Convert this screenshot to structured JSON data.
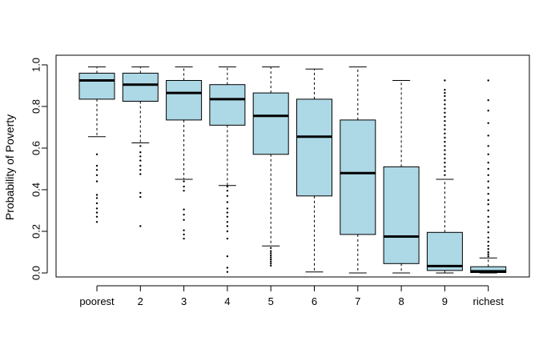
{
  "chart_data": {
    "type": "boxplot",
    "title": "",
    "xlabel": "",
    "ylabel": "Probability of Poverty",
    "ylim": [
      0.0,
      1.0
    ],
    "yticks": [
      "0.0",
      "0.2",
      "0.4",
      "0.6",
      "0.8",
      "1.0"
    ],
    "categories": [
      "poorest",
      "2",
      "3",
      "4",
      "5",
      "6",
      "7",
      "8",
      "9",
      "richest"
    ],
    "box_color": "#add8e6",
    "grid": false,
    "boxes": [
      {
        "q1": 0.835,
        "median": 0.925,
        "q3": 0.96,
        "whisker_low": 0.655,
        "whisker_high": 0.99,
        "outliers": [
          0.245,
          0.27,
          0.29,
          0.31,
          0.335,
          0.36,
          0.375,
          0.44,
          0.47,
          0.495,
          0.515,
          0.57
        ]
      },
      {
        "q1": 0.825,
        "median": 0.905,
        "q3": 0.96,
        "whisker_low": 0.625,
        "whisker_high": 0.99,
        "outliers": [
          0.225,
          0.365,
          0.385,
          0.475,
          0.495,
          0.515,
          0.54,
          0.56,
          0.58,
          0.61
        ]
      },
      {
        "q1": 0.735,
        "median": 0.865,
        "q3": 0.925,
        "whisker_low": 0.45,
        "whisker_high": 0.99,
        "outliers": [
          0.165,
          0.185,
          0.205,
          0.255,
          0.28,
          0.305,
          0.395,
          0.415,
          0.44
        ]
      },
      {
        "q1": 0.71,
        "median": 0.835,
        "q3": 0.905,
        "whisker_low": 0.42,
        "whisker_high": 0.99,
        "outliers": [
          0.005,
          0.025,
          0.08,
          0.165,
          0.2,
          0.225,
          0.245,
          0.27,
          0.29,
          0.31,
          0.34,
          0.37,
          0.395,
          0.415
        ]
      },
      {
        "q1": 0.57,
        "median": 0.755,
        "q3": 0.865,
        "whisker_low": 0.13,
        "whisker_high": 0.99,
        "outliers": [
          0.035,
          0.045,
          0.055,
          0.065,
          0.075,
          0.085,
          0.095,
          0.105,
          0.12
        ]
      },
      {
        "q1": 0.37,
        "median": 0.655,
        "q3": 0.835,
        "whisker_low": 0.005,
        "whisker_high": 0.98,
        "outliers": []
      },
      {
        "q1": 0.185,
        "median": 0.48,
        "q3": 0.735,
        "whisker_low": 0.0,
        "whisker_high": 0.99,
        "outliers": []
      },
      {
        "q1": 0.045,
        "median": 0.175,
        "q3": 0.51,
        "whisker_low": 0.0,
        "whisker_high": 0.925,
        "outliers": []
      },
      {
        "q1": 0.012,
        "median": 0.033,
        "q3": 0.195,
        "whisker_low": 0.0,
        "whisker_high": 0.45,
        "outliers": [
          0.47,
          0.49,
          0.51,
          0.53,
          0.55,
          0.57,
          0.59,
          0.61,
          0.63,
          0.65,
          0.67,
          0.69,
          0.71,
          0.73,
          0.75,
          0.77,
          0.79,
          0.81,
          0.83,
          0.85,
          0.865,
          0.88,
          0.925
        ]
      },
      {
        "q1": 0.002,
        "median": 0.008,
        "q3": 0.03,
        "whisker_low": 0.0,
        "whisker_high": 0.072,
        "outliers": [
          0.08,
          0.09,
          0.1,
          0.115,
          0.13,
          0.15,
          0.17,
          0.195,
          0.22,
          0.245,
          0.27,
          0.3,
          0.33,
          0.35,
          0.38,
          0.41,
          0.44,
          0.47,
          0.5,
          0.53,
          0.57,
          0.61,
          0.66,
          0.72,
          0.78,
          0.83,
          0.925
        ]
      }
    ]
  }
}
